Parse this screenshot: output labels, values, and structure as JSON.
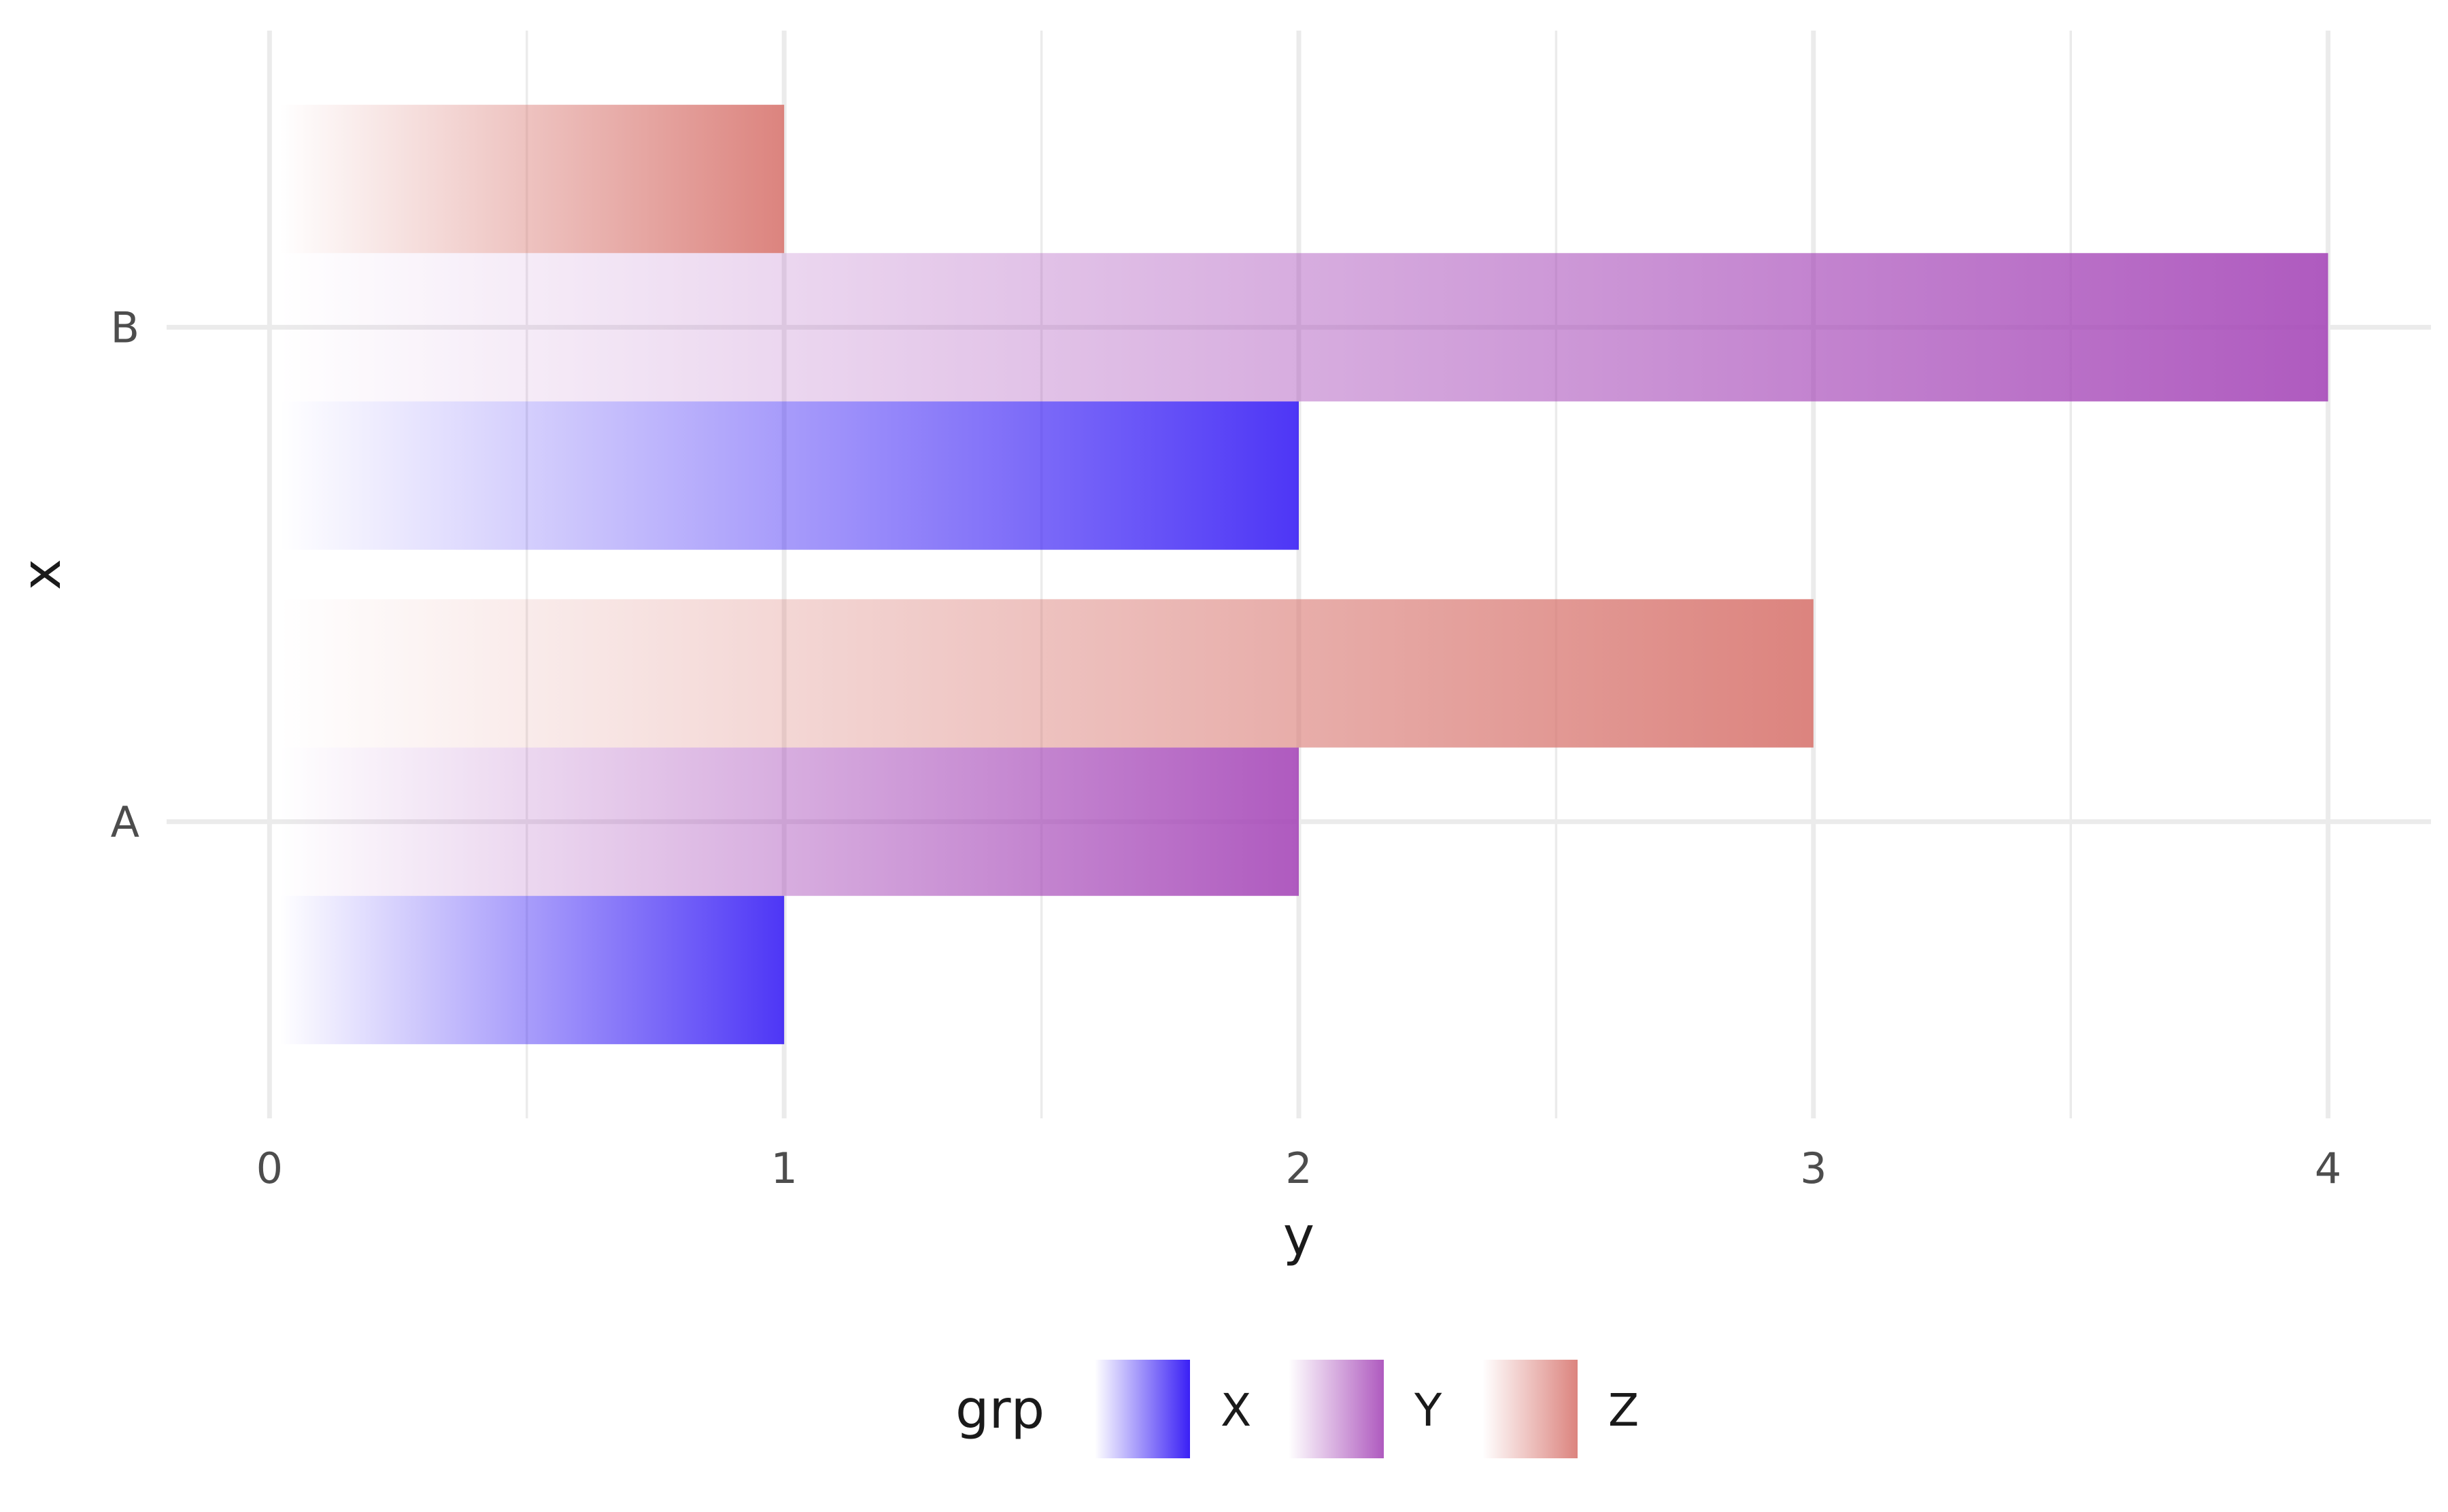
{
  "chart_data": {
    "type": "bar",
    "orientation": "horizontal",
    "categories": [
      "A",
      "B"
    ],
    "series": [
      {
        "name": "X",
        "values": [
          1,
          2
        ],
        "color": "#3a20f5"
      },
      {
        "name": "Y",
        "values": [
          2,
          4
        ],
        "color": "#a648b8"
      },
      {
        "name": "Z",
        "values": [
          3,
          1
        ],
        "color": "#d87670"
      }
    ],
    "xlabel": "y",
    "ylabel": "x",
    "xlim": [
      -0.2,
      4.2
    ],
    "x_ticks": [
      "0",
      "1",
      "2",
      "3",
      "4"
    ],
    "fill": "horizontal gradient from transparent to series color",
    "grid": true,
    "legend": {
      "title": "grp",
      "position": "bottom"
    }
  }
}
